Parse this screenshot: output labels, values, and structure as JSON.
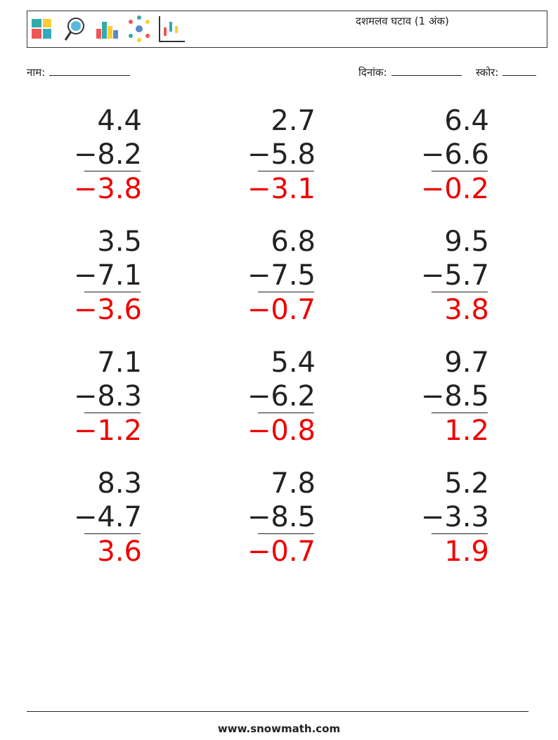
{
  "header": {
    "title": "दशमलव घटाव (1 अंक)"
  },
  "fields": {
    "name": "नाम:",
    "date": "दिनांक:",
    "score": "स्कोर:"
  },
  "problems": [
    {
      "top": "4.4",
      "bottom": "−8.2",
      "answer": "−3.8"
    },
    {
      "top": "2.7",
      "bottom": "−5.8",
      "answer": "−3.1"
    },
    {
      "top": "6.4",
      "bottom": "−6.6",
      "answer": "−0.2"
    },
    {
      "top": "3.5",
      "bottom": "−7.1",
      "answer": "−3.6"
    },
    {
      "top": "6.8",
      "bottom": "−7.5",
      "answer": "−0.7"
    },
    {
      "top": "9.5",
      "bottom": "−5.7",
      "answer": "3.8"
    },
    {
      "top": "7.1",
      "bottom": "−8.3",
      "answer": "−1.2"
    },
    {
      "top": "5.4",
      "bottom": "−6.2",
      "answer": "−0.8"
    },
    {
      "top": "9.7",
      "bottom": "−8.5",
      "answer": "1.2"
    },
    {
      "top": "8.3",
      "bottom": "−4.7",
      "answer": "3.6"
    },
    {
      "top": "7.8",
      "bottom": "−8.5",
      "answer": "−0.7"
    },
    {
      "top": "5.2",
      "bottom": "−3.3",
      "answer": "1.9"
    }
  ],
  "footer": {
    "text": "www.snowmath.com"
  }
}
